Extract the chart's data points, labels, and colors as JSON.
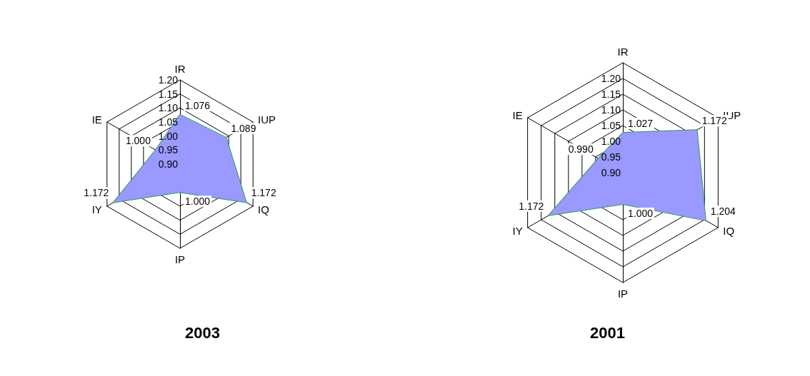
{
  "chart_data": [
    {
      "type": "radar",
      "title": "2003",
      "categories": [
        "IR",
        "IUP",
        "IQ",
        "IP",
        "IY",
        "IE"
      ],
      "ylim": [
        0.9,
        1.2
      ],
      "yticks": [
        {
          "value": 0.9,
          "label": "0.90"
        },
        {
          "value": 0.95,
          "label": "0.95"
        },
        {
          "value": 1.0,
          "label": "1.00"
        },
        {
          "value": 1.05,
          "label": "1.05"
        },
        {
          "value": 1.1,
          "label": "1.10"
        },
        {
          "value": 1.15,
          "label": "1.15"
        },
        {
          "value": 1.2,
          "label": "1.20"
        }
      ],
      "marker": "none",
      "series": [
        {
          "color": "#9999ff",
          "values": [
            1.076,
            1.089,
            1.172,
            1.0,
            1.172,
            1.0
          ],
          "value_labels": [
            "1.076",
            "1.089",
            "1.172",
            "1.000",
            "1.172",
            "1.000"
          ]
        }
      ]
    },
    {
      "type": "radar",
      "title": "2001",
      "categories": [
        "IR",
        "IUP",
        "IQ",
        "IP",
        "IY",
        "IE"
      ],
      "ylim": [
        0.9,
        1.25
      ],
      "yticks": [
        {
          "value": 0.9,
          "label": "0.90"
        },
        {
          "value": 0.95,
          "label": "0.95"
        },
        {
          "value": 1.0,
          "label": "1.00"
        },
        {
          "value": 1.05,
          "label": "1.05"
        },
        {
          "value": 1.1,
          "label": "1.10"
        },
        {
          "value": 1.15,
          "label": "1.15"
        },
        {
          "value": 1.2,
          "label": "1.20"
        }
      ],
      "marker": "none",
      "series": [
        {
          "color": "#9999ff",
          "values": [
            1.027,
            1.172,
            1.204,
            1.0,
            1.172,
            0.99
          ],
          "value_labels": [
            "1.027",
            "1.172",
            "1.204",
            "1.000",
            "1.172",
            "0.990"
          ]
        }
      ]
    }
  ]
}
